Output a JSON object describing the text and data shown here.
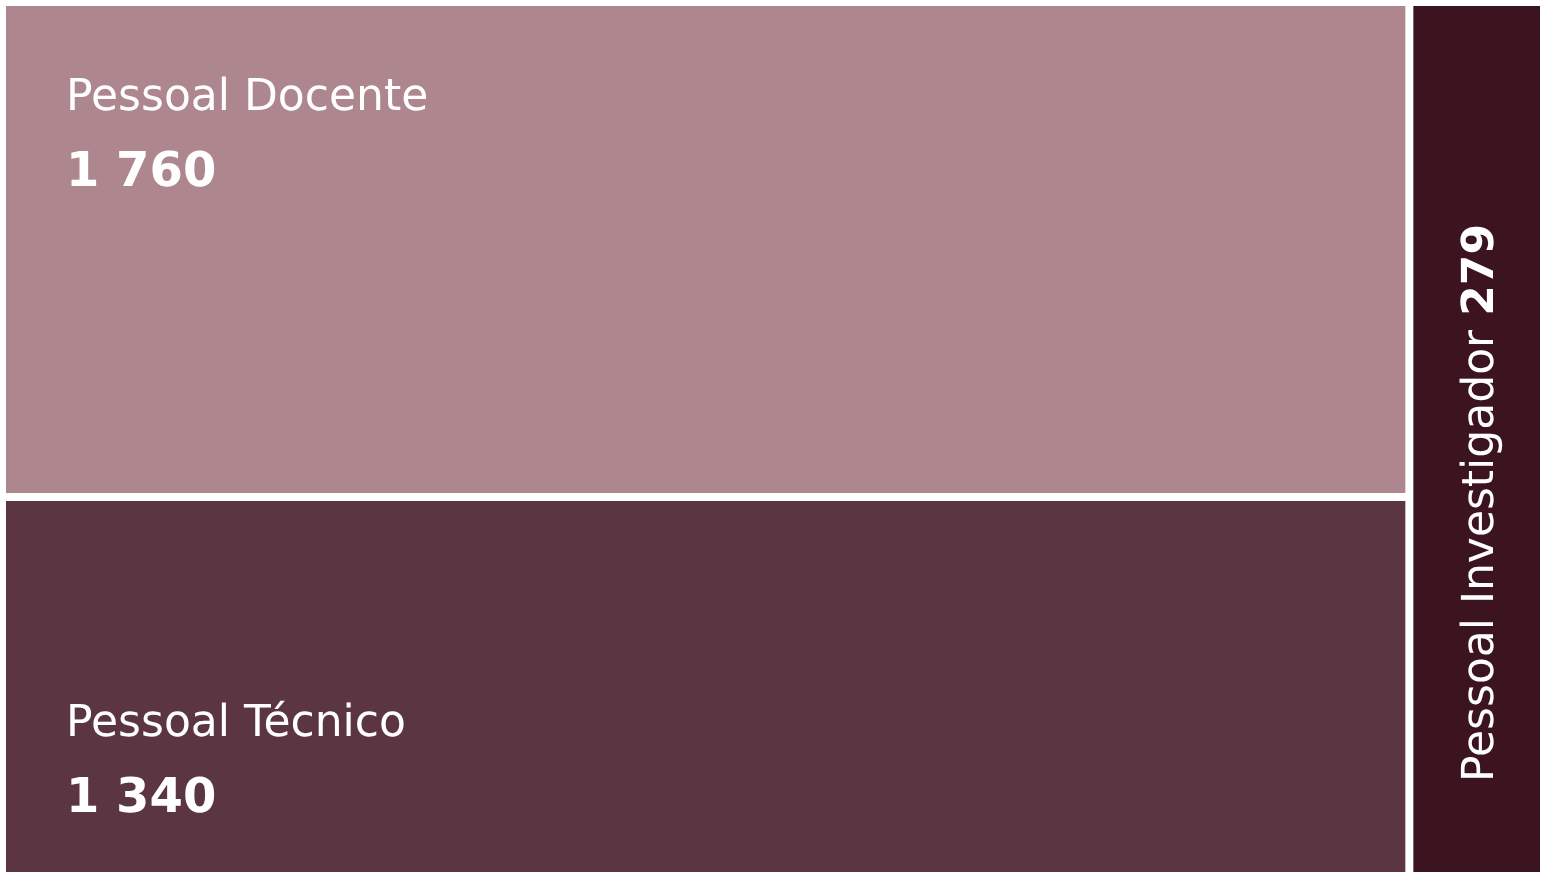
{
  "chart_data": {
    "type": "other",
    "categories": [
      "Pessoal Docente",
      "Pessoal Técnico",
      "Pessoal Investigador"
    ],
    "values": [
      1760,
      1340,
      279
    ],
    "value_labels": [
      "1 760",
      "1 340",
      "279"
    ],
    "colors": [
      "#ae868e",
      "#5b3541",
      "#3c1420"
    ]
  }
}
